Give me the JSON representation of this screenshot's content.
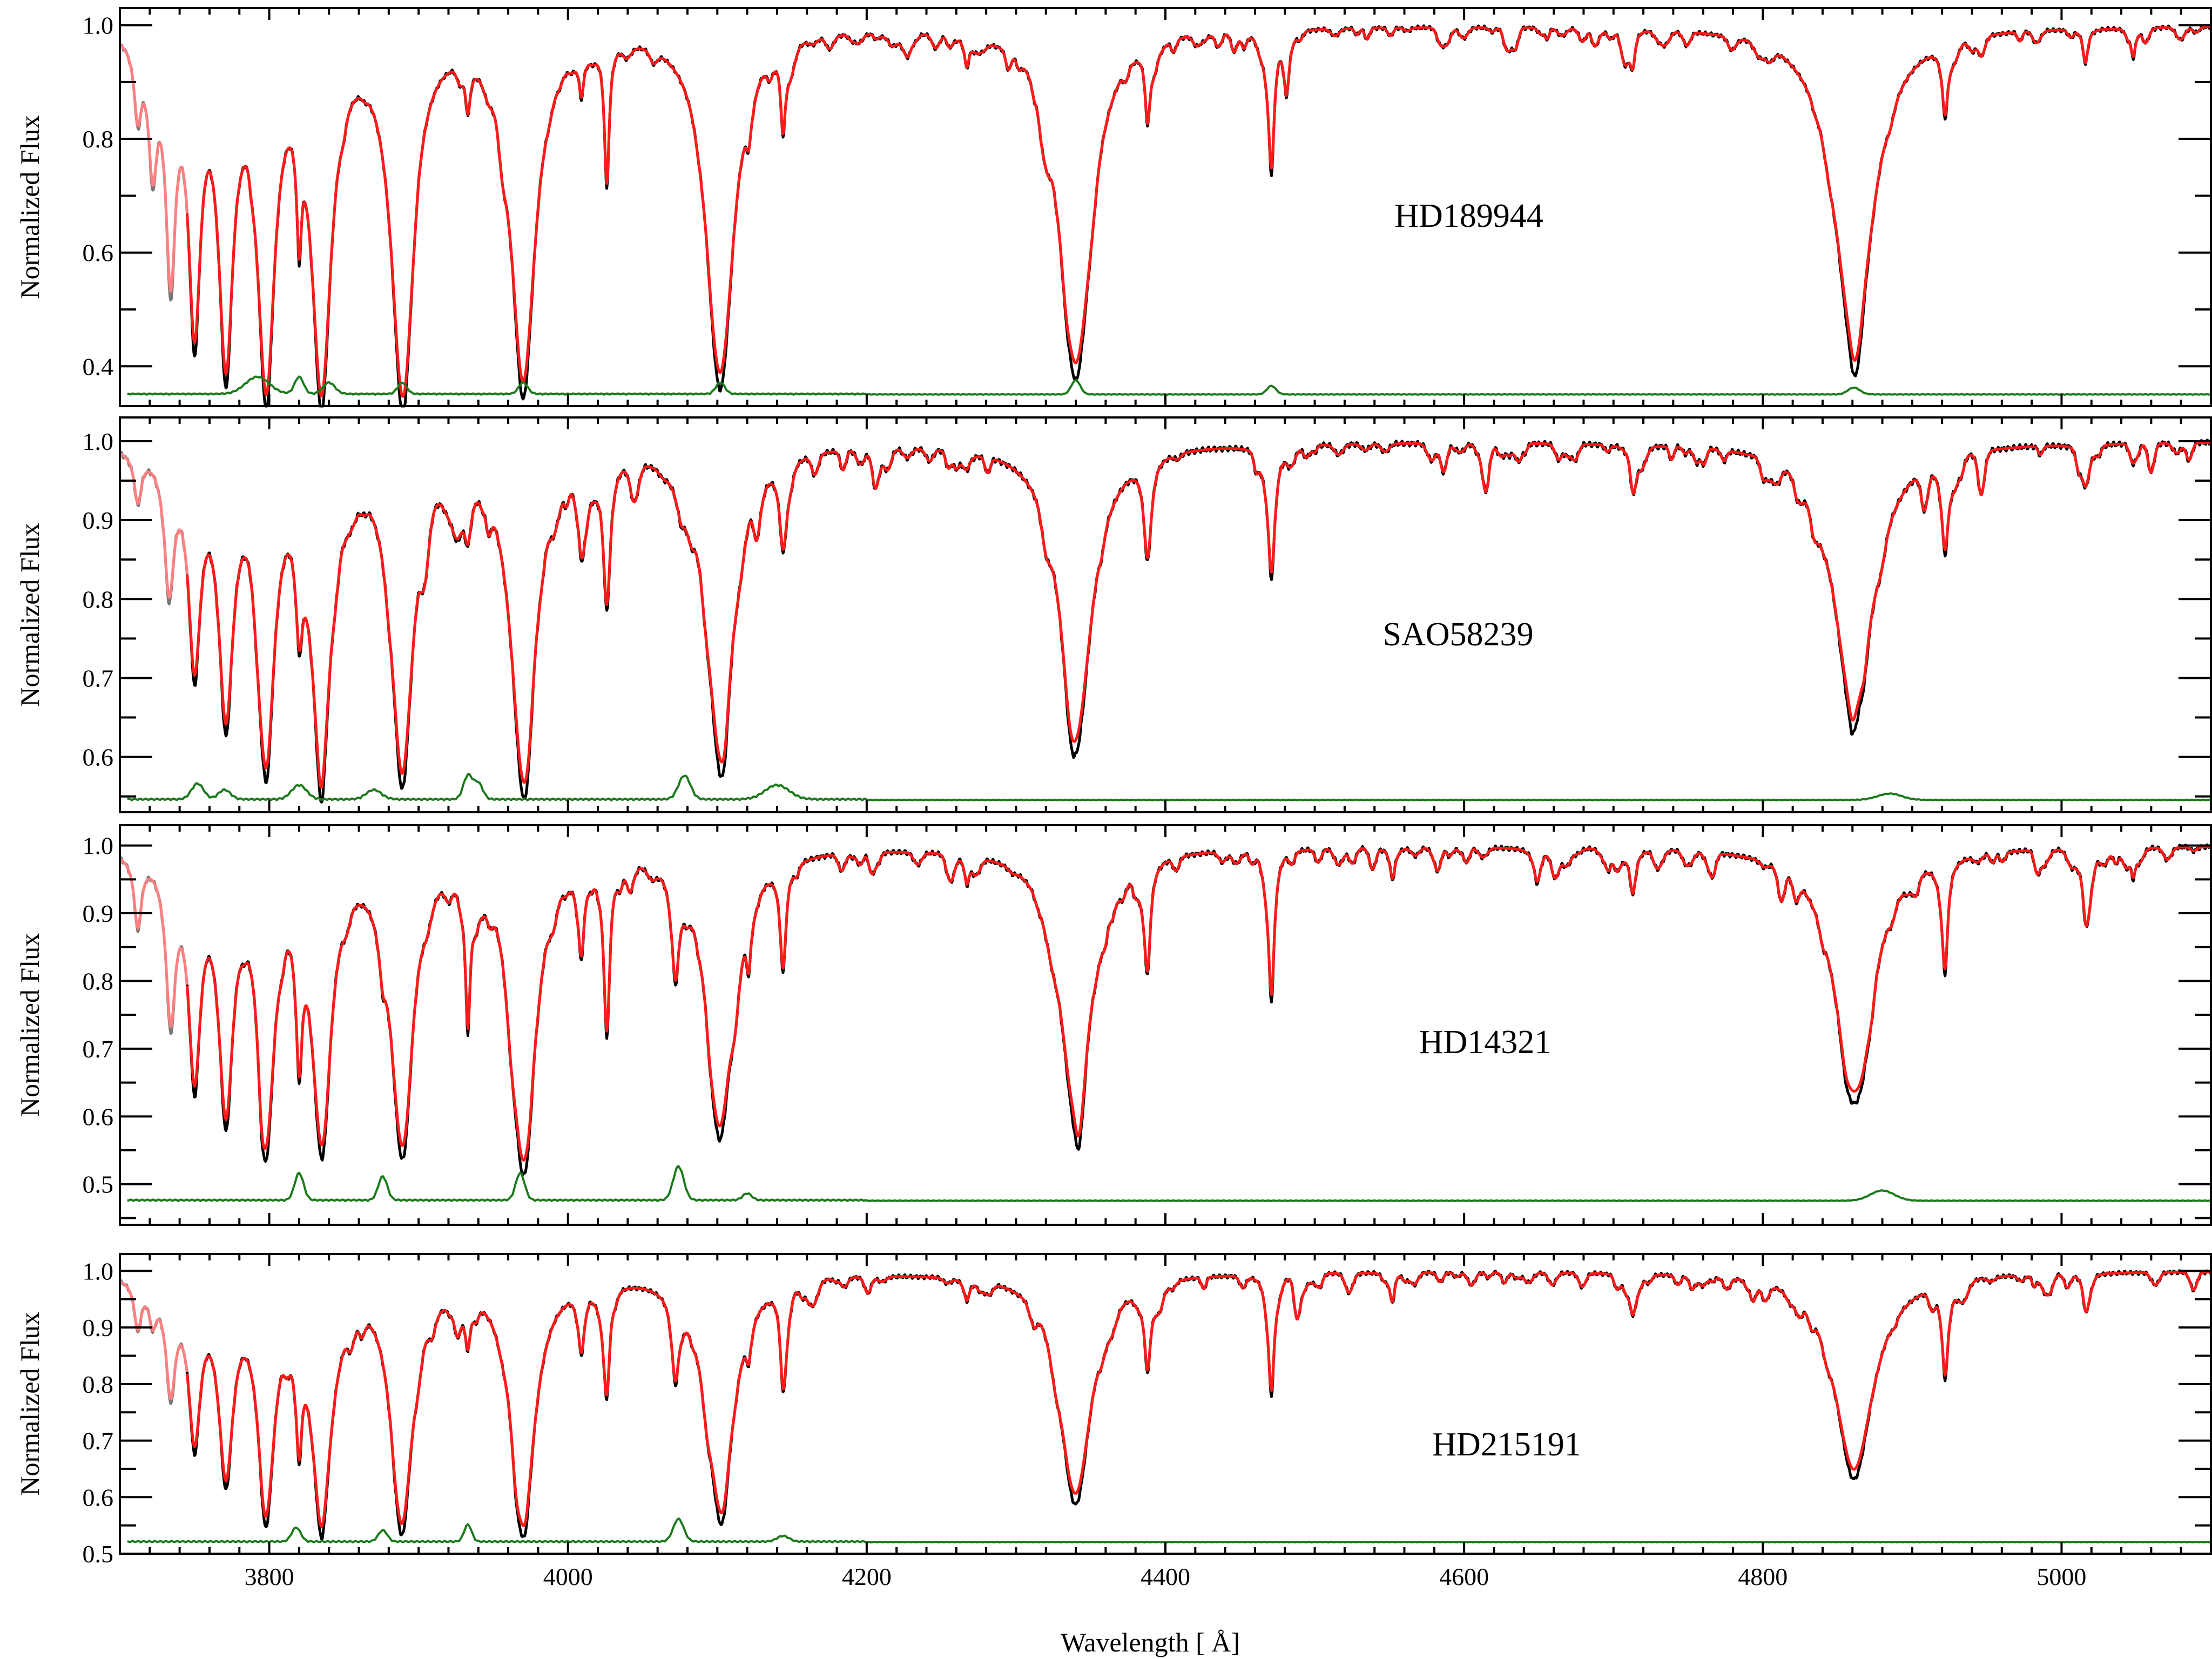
{
  "figure": {
    "xlabel": "Wavelength [ Å]",
    "ylabel": "Normalized Flux"
  },
  "colors": {
    "observed": "#000000",
    "observed_masked": "#777777",
    "model": "#ff1a1a",
    "model_masked": "#ff8080",
    "residual": "#1b7a1b"
  },
  "chart_data": [
    {
      "type": "line",
      "star": "HD189944",
      "xlim": [
        3700,
        5100
      ],
      "ylim": [
        0.33,
        1.03
      ],
      "yticks": [
        "0.4",
        "0.6",
        "0.8",
        "1.0"
      ],
      "xticks": [
        "3800",
        "4000",
        "4200",
        "4400",
        "4600",
        "4800",
        "5000"
      ],
      "residual_baseline": 0.35,
      "lines": [
        {
          "x": 3712,
          "depth": 0.12,
          "width": 3
        },
        {
          "x": 3722,
          "depth": 0.2,
          "width": 3.5
        },
        {
          "x": 3734,
          "depth": 0.38,
          "width": 4
        },
        {
          "x": 3750,
          "depth": 0.47,
          "width": 5
        },
        {
          "x": 3771,
          "depth": 0.53,
          "width": 6
        },
        {
          "x": 3798,
          "depth": 0.58,
          "width": 7
        },
        {
          "x": 3820,
          "depth": 0.2,
          "width": 2
        },
        {
          "x": 3835,
          "depth": 0.6,
          "width": 8
        },
        {
          "x": 3889,
          "depth": 0.61,
          "width": 9
        },
        {
          "x": 3933,
          "depth": 0.08,
          "width": 2
        },
        {
          "x": 3970,
          "depth": 0.61,
          "width": 10
        },
        {
          "x": 4009,
          "depth": 0.07,
          "width": 2
        },
        {
          "x": 4026,
          "depth": 0.24,
          "width": 2
        },
        {
          "x": 4102,
          "depth": 0.6,
          "width": 11
        },
        {
          "x": 4121,
          "depth": 0.05,
          "width": 2
        },
        {
          "x": 4144,
          "depth": 0.14,
          "width": 2
        },
        {
          "x": 4267,
          "depth": 0.05,
          "width": 2
        },
        {
          "x": 4340,
          "depth": 0.59,
          "width": 13
        },
        {
          "x": 4388,
          "depth": 0.12,
          "width": 2
        },
        {
          "x": 4471,
          "depth": 0.22,
          "width": 2.5
        },
        {
          "x": 4481,
          "depth": 0.08,
          "width": 2
        },
        {
          "x": 4713,
          "depth": 0.06,
          "width": 2
        },
        {
          "x": 4861,
          "depth": 0.55,
          "width": 16
        },
        {
          "x": 4922,
          "depth": 0.12,
          "width": 2.5
        },
        {
          "x": 5016,
          "depth": 0.06,
          "width": 2
        },
        {
          "x": 5048,
          "depth": 0.05,
          "width": 2
        }
      ],
      "residual_bumps": [
        {
          "x": 3792,
          "h": 0.03,
          "w": 8
        },
        {
          "x": 3820,
          "h": 0.03,
          "w": 3
        },
        {
          "x": 3840,
          "h": 0.02,
          "w": 4
        },
        {
          "x": 3889,
          "h": 0.02,
          "w": 3
        },
        {
          "x": 3970,
          "h": 0.02,
          "w": 3
        },
        {
          "x": 4102,
          "h": 0.02,
          "w": 3
        },
        {
          "x": 4340,
          "h": 0.025,
          "w": 3
        },
        {
          "x": 4471,
          "h": 0.015,
          "w": 3
        },
        {
          "x": 4861,
          "h": 0.012,
          "w": 4
        }
      ]
    },
    {
      "type": "line",
      "star": "SAO58239",
      "xlim": [
        3700,
        5100
      ],
      "ylim": [
        0.53,
        1.03
      ],
      "yticks": [
        "0.6",
        "0.7",
        "0.8",
        "0.9",
        "1.0"
      ],
      "xticks": [
        "3800",
        "4000",
        "4200",
        "4400",
        "4600",
        "4800",
        "5000"
      ],
      "residual_baseline": 0.545,
      "lines": [
        {
          "x": 3712,
          "depth": 0.06,
          "width": 3
        },
        {
          "x": 3733,
          "depth": 0.16,
          "width": 4
        },
        {
          "x": 3750,
          "depth": 0.25,
          "width": 5
        },
        {
          "x": 3771,
          "depth": 0.31,
          "width": 6
        },
        {
          "x": 3798,
          "depth": 0.36,
          "width": 7
        },
        {
          "x": 3820,
          "depth": 0.12,
          "width": 3
        },
        {
          "x": 3835,
          "depth": 0.38,
          "width": 8
        },
        {
          "x": 3889,
          "depth": 0.4,
          "width": 9
        },
        {
          "x": 3926,
          "depth": 0.06,
          "width": 5
        },
        {
          "x": 3933,
          "depth": 0.06,
          "width": 3
        },
        {
          "x": 3970,
          "depth": 0.41,
          "width": 10
        },
        {
          "x": 4009,
          "depth": 0.07,
          "width": 3
        },
        {
          "x": 4026,
          "depth": 0.18,
          "width": 3
        },
        {
          "x": 4076,
          "depth": 0.04,
          "width": 4
        },
        {
          "x": 4102,
          "depth": 0.39,
          "width": 11
        },
        {
          "x": 4144,
          "depth": 0.1,
          "width": 3
        },
        {
          "x": 4267,
          "depth": 0.02,
          "width": 3
        },
        {
          "x": 4340,
          "depth": 0.37,
          "width": 13
        },
        {
          "x": 4388,
          "depth": 0.11,
          "width": 3
        },
        {
          "x": 4471,
          "depth": 0.16,
          "width": 3
        },
        {
          "x": 4713,
          "depth": 0.04,
          "width": 3
        },
        {
          "x": 4861,
          "depth": 0.34,
          "width": 16
        },
        {
          "x": 4922,
          "depth": 0.11,
          "width": 3
        },
        {
          "x": 5016,
          "depth": 0.04,
          "width": 3
        }
      ],
      "residual_bumps": [
        {
          "x": 3752,
          "h": 0.02,
          "w": 4
        },
        {
          "x": 3770,
          "h": 0.012,
          "w": 4
        },
        {
          "x": 3820,
          "h": 0.018,
          "w": 5
        },
        {
          "x": 3870,
          "h": 0.012,
          "w": 5
        },
        {
          "x": 3933,
          "h": 0.03,
          "w": 3
        },
        {
          "x": 3940,
          "h": 0.02,
          "w": 3
        },
        {
          "x": 4078,
          "h": 0.03,
          "w": 4
        },
        {
          "x": 4140,
          "h": 0.018,
          "w": 8
        },
        {
          "x": 4885,
          "h": 0.008,
          "w": 8
        }
      ]
    },
    {
      "type": "line",
      "star": "HD14321",
      "xlim": [
        3700,
        5100
      ],
      "ylim": [
        0.44,
        1.03
      ],
      "yticks": [
        "0.5",
        "0.6",
        "0.7",
        "0.8",
        "0.9",
        "1.0"
      ],
      "xticks": [
        "3800",
        "4000",
        "4200",
        "4400",
        "4600",
        "4800",
        "5000"
      ],
      "residual_baseline": 0.475,
      "lines": [
        {
          "x": 3712,
          "depth": 0.1,
          "width": 3
        },
        {
          "x": 3734,
          "depth": 0.22,
          "width": 4
        },
        {
          "x": 3750,
          "depth": 0.3,
          "width": 5
        },
        {
          "x": 3771,
          "depth": 0.35,
          "width": 6
        },
        {
          "x": 3798,
          "depth": 0.39,
          "width": 7
        },
        {
          "x": 3820,
          "depth": 0.18,
          "width": 2.5
        },
        {
          "x": 3835,
          "depth": 0.4,
          "width": 8
        },
        {
          "x": 3876,
          "depth": 0.06,
          "width": 3
        },
        {
          "x": 3889,
          "depth": 0.41,
          "width": 9
        },
        {
          "x": 3933,
          "depth": 0.21,
          "width": 2
        },
        {
          "x": 3970,
          "depth": 0.45,
          "width": 10
        },
        {
          "x": 4009,
          "depth": 0.1,
          "width": 2.5
        },
        {
          "x": 4026,
          "depth": 0.23,
          "width": 2.5
        },
        {
          "x": 4072,
          "depth": 0.12,
          "width": 3
        },
        {
          "x": 4102,
          "depth": 0.4,
          "width": 11
        },
        {
          "x": 4121,
          "depth": 0.08,
          "width": 2
        },
        {
          "x": 4144,
          "depth": 0.15,
          "width": 2.5
        },
        {
          "x": 4267,
          "depth": 0.04,
          "width": 2
        },
        {
          "x": 4340,
          "depth": 0.39,
          "width": 13
        },
        {
          "x": 4388,
          "depth": 0.15,
          "width": 2.5
        },
        {
          "x": 4471,
          "depth": 0.21,
          "width": 2.5
        },
        {
          "x": 4552,
          "depth": 0.04,
          "width": 2
        },
        {
          "x": 4649,
          "depth": 0.05,
          "width": 3
        },
        {
          "x": 4713,
          "depth": 0.06,
          "width": 2.5
        },
        {
          "x": 4861,
          "depth": 0.36,
          "width": 16
        },
        {
          "x": 4922,
          "depth": 0.14,
          "width": 2.5
        },
        {
          "x": 5016,
          "depth": 0.07,
          "width": 2.5
        },
        {
          "x": 5048,
          "depth": 0.04,
          "width": 2
        }
      ],
      "residual_bumps": [
        {
          "x": 3820,
          "h": 0.04,
          "w": 3
        },
        {
          "x": 3876,
          "h": 0.035,
          "w": 3
        },
        {
          "x": 3968,
          "h": 0.04,
          "w": 3
        },
        {
          "x": 4074,
          "h": 0.05,
          "w": 3.5
        },
        {
          "x": 4120,
          "h": 0.01,
          "w": 3
        },
        {
          "x": 4880,
          "h": 0.015,
          "w": 8
        }
      ]
    },
    {
      "type": "line",
      "star": "HD215191",
      "xlim": [
        3700,
        5100
      ],
      "ylim": [
        0.5,
        1.03
      ],
      "yticks": [
        "0.5",
        "0.6",
        "0.7",
        "0.8",
        "0.9",
        "1.0"
      ],
      "xticks": [
        "3800",
        "4000",
        "4200",
        "4400",
        "4600",
        "4800",
        "5000"
      ],
      "residual_baseline": 0.52,
      "lines": [
        {
          "x": 3712,
          "depth": 0.08,
          "width": 3
        },
        {
          "x": 3722,
          "depth": 0.06,
          "width": 3
        },
        {
          "x": 3734,
          "depth": 0.18,
          "width": 4
        },
        {
          "x": 3750,
          "depth": 0.26,
          "width": 5
        },
        {
          "x": 3771,
          "depth": 0.32,
          "width": 6
        },
        {
          "x": 3798,
          "depth": 0.38,
          "width": 7
        },
        {
          "x": 3820,
          "depth": 0.18,
          "width": 2.5
        },
        {
          "x": 3835,
          "depth": 0.4,
          "width": 8
        },
        {
          "x": 3889,
          "depth": 0.42,
          "width": 9
        },
        {
          "x": 3926,
          "depth": 0.06,
          "width": 3
        },
        {
          "x": 3933,
          "depth": 0.07,
          "width": 2
        },
        {
          "x": 3970,
          "depth": 0.42,
          "width": 10
        },
        {
          "x": 4009,
          "depth": 0.08,
          "width": 2.5
        },
        {
          "x": 4026,
          "depth": 0.17,
          "width": 2.5
        },
        {
          "x": 4072,
          "depth": 0.12,
          "width": 3
        },
        {
          "x": 4102,
          "depth": 0.41,
          "width": 11
        },
        {
          "x": 4121,
          "depth": 0.05,
          "width": 2
        },
        {
          "x": 4144,
          "depth": 0.15,
          "width": 2.5
        },
        {
          "x": 4267,
          "depth": 0.03,
          "width": 2
        },
        {
          "x": 4340,
          "depth": 0.39,
          "width": 13
        },
        {
          "x": 4388,
          "depth": 0.14,
          "width": 2.5
        },
        {
          "x": 4471,
          "depth": 0.2,
          "width": 2.5
        },
        {
          "x": 4552,
          "depth": 0.03,
          "width": 2
        },
        {
          "x": 4713,
          "depth": 0.06,
          "width": 2.5
        },
        {
          "x": 4861,
          "depth": 0.35,
          "width": 16
        },
        {
          "x": 4922,
          "depth": 0.14,
          "width": 2.5
        },
        {
          "x": 5016,
          "depth": 0.05,
          "width": 2.5
        }
      ],
      "residual_bumps": [
        {
          "x": 3818,
          "h": 0.025,
          "w": 3
        },
        {
          "x": 3876,
          "h": 0.02,
          "w": 3
        },
        {
          "x": 3933,
          "h": 0.03,
          "w": 2.5
        },
        {
          "x": 4074,
          "h": 0.04,
          "w": 3.5
        },
        {
          "x": 4144,
          "h": 0.01,
          "w": 4
        }
      ]
    }
  ]
}
